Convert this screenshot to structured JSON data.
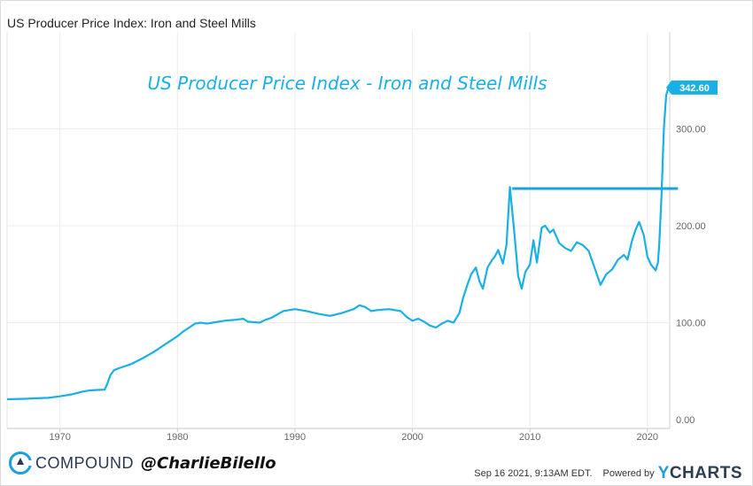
{
  "header": {
    "title": "US Producer Price Index: Iron and Steel Mills"
  },
  "chart_data": {
    "type": "line",
    "title": "US Producer Price Index - Iron and Steel Mills",
    "xlabel": "",
    "ylabel": "",
    "xlim": [
      1965.5,
      2021.9
    ],
    "ylim": [
      0,
      370
    ],
    "grid": true,
    "x_ticks": [
      "1970",
      "1980",
      "1990",
      "2000",
      "2010",
      "2020"
    ],
    "y_ticks": [
      "0.00",
      "100.00",
      "200.00",
      "300.00"
    ],
    "line_color": "#1ab0e6",
    "last_value_label": "342.60",
    "annotation": {
      "type": "horizontal-line",
      "y": 238.3,
      "x_start": 2008.5,
      "x_end": 2022.6,
      "color": "#1aa3d9"
    },
    "series": [
      {
        "x": [
          1965.5,
          1967,
          1968,
          1969,
          1970,
          1971,
          1972,
          1972.5,
          1973,
          1973.8,
          1974,
          1974.3,
          1974.6,
          1975,
          1976,
          1977,
          1978,
          1979,
          1980,
          1980.5,
          1981,
          1981.5,
          1982,
          1982.5,
          1983,
          1984,
          1985,
          1985.6,
          1986,
          1987,
          1987.5,
          1988,
          1989,
          1990,
          1991,
          1992,
          1993,
          1994,
          1995,
          1995.5,
          1996,
          1996.5,
          1997,
          1998,
          1999,
          1999.5,
          2000,
          2000.5,
          2001,
          2001.5,
          2002,
          2002.5,
          2003,
          2003.5,
          2004,
          2004.3,
          2004.7,
          2005,
          2005.4,
          2005.7,
          2006,
          2006.4,
          2006.8,
          2007,
          2007.3,
          2007.7,
          2008,
          2008.3,
          2008.7,
          2009,
          2009.3,
          2009.6,
          2010,
          2010.3,
          2010.6,
          2011,
          2011.3,
          2011.7,
          2012,
          2012.5,
          2013,
          2013.5,
          2014,
          2014.5,
          2015,
          2015.5,
          2016,
          2016.5,
          2017,
          2017.5,
          2018,
          2018.3,
          2018.7,
          2019,
          2019.3,
          2019.7,
          2020,
          2020.3,
          2020.7,
          2020.9,
          2021,
          2021.2,
          2021.4,
          2021.6,
          2021.8
        ],
        "values": [
          21,
          21.5,
          22,
          22.5,
          24,
          26,
          29,
          30,
          30.5,
          31,
          36,
          46,
          51,
          53,
          57,
          63,
          70,
          78,
          86,
          91,
          95,
          99,
          100,
          99,
          100,
          102,
          103,
          104,
          101,
          100,
          103,
          105,
          112,
          114,
          112,
          109,
          107,
          110,
          114,
          118,
          116,
          112,
          113,
          114,
          112,
          106,
          102,
          104,
          101,
          97,
          95,
          99,
          102,
          100,
          110,
          125,
          140,
          150,
          157,
          143,
          135,
          157,
          165,
          168,
          175,
          161,
          180,
          240,
          190,
          148,
          135,
          152,
          160,
          185,
          162,
          198,
          200,
          193,
          196,
          182,
          177,
          174,
          183,
          180,
          174,
          157,
          139,
          150,
          155,
          165,
          170,
          165,
          185,
          196,
          204,
          190,
          168,
          160,
          154,
          162,
          180,
          230,
          300,
          335,
          342.6
        ]
      }
    ]
  },
  "footer": {
    "brand_name": "COMPOUND",
    "handle": "@CharlieBilello",
    "timestamp": "Sep 16 2021, 9:13AM EDT.",
    "powered_by": "Powered by",
    "ycharts_y": "Y",
    "ycharts_rest": "CHARTS"
  }
}
